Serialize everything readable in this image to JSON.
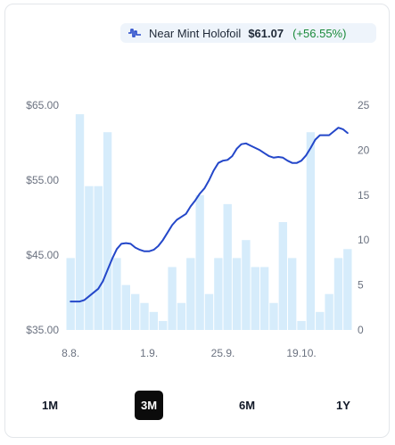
{
  "legend": {
    "series_name": "Near Mint Holofoil",
    "price": "$61.07",
    "change": "(+56.55%)",
    "icon": "pulse-line-icon"
  },
  "ranges": [
    "1M",
    "3M",
    "6M",
    "1Y"
  ],
  "active_range": "3M",
  "colors": {
    "line": "#2447c9",
    "bar": "#d6ecfb",
    "change": "#1a8a3a",
    "active_bg": "#0b0b0b"
  },
  "chart_data": {
    "type": "bar+line",
    "x_tick_labels": [
      "8.8.",
      "1.9.",
      "25.9.",
      "19.10."
    ],
    "left_axis": {
      "ticks": [
        "$35.00",
        "$45.00",
        "$55.00",
        "$65.00"
      ],
      "ylim": [
        35,
        65
      ]
    },
    "right_axis": {
      "ticks": [
        "0",
        "5",
        "10",
        "15",
        "20",
        "25"
      ],
      "ylim": [
        0,
        25
      ]
    },
    "bars": [
      8,
      24,
      16,
      16,
      22,
      8,
      5,
      4,
      3,
      2,
      1,
      7,
      3,
      8,
      15,
      4,
      8,
      14,
      8,
      10,
      7,
      7,
      3,
      12,
      8,
      1,
      22,
      2,
      4,
      8,
      9
    ],
    "line": [
      [
        0,
        38.8
      ],
      [
        1,
        38.8
      ],
      [
        1.5,
        39.0
      ],
      [
        2,
        39.5
      ],
      [
        3,
        40.5
      ],
      [
        3.5,
        41.5
      ],
      [
        4,
        43.0
      ],
      [
        4.5,
        44.5
      ],
      [
        5,
        45.8
      ],
      [
        5.5,
        46.5
      ],
      [
        6,
        46.6
      ],
      [
        6.5,
        46.5
      ],
      [
        7,
        46.0
      ],
      [
        7.5,
        45.7
      ],
      [
        8,
        45.5
      ],
      [
        8.5,
        45.5
      ],
      [
        9,
        45.7
      ],
      [
        9.5,
        46.2
      ],
      [
        10,
        47.0
      ],
      [
        10.5,
        48.0
      ],
      [
        11,
        49.0
      ],
      [
        11.5,
        49.7
      ],
      [
        12,
        50.1
      ],
      [
        12.5,
        50.5
      ],
      [
        13,
        51.5
      ],
      [
        13.5,
        52.3
      ],
      [
        14,
        53.2
      ],
      [
        14.5,
        53.9
      ],
      [
        15,
        55.0
      ],
      [
        15.5,
        56.3
      ],
      [
        16,
        57.3
      ],
      [
        16.5,
        57.6
      ],
      [
        17,
        57.7
      ],
      [
        17.5,
        58.2
      ],
      [
        18,
        59.2
      ],
      [
        18.5,
        59.8
      ],
      [
        19,
        59.9
      ],
      [
        19.5,
        59.6
      ],
      [
        20,
        59.3
      ],
      [
        20.5,
        59.0
      ],
      [
        21,
        58.6
      ],
      [
        21.5,
        58.2
      ],
      [
        22,
        58.0
      ],
      [
        22.5,
        58.1
      ],
      [
        23,
        58.0
      ],
      [
        23.5,
        57.6
      ],
      [
        24,
        57.3
      ],
      [
        24.5,
        57.3
      ],
      [
        25,
        57.6
      ],
      [
        25.5,
        58.3
      ],
      [
        26,
        59.3
      ],
      [
        26.5,
        60.4
      ],
      [
        27,
        61.0
      ],
      [
        27.5,
        61.0
      ],
      [
        28,
        61.0
      ],
      [
        28.5,
        61.5
      ],
      [
        29,
        62.0
      ],
      [
        29.5,
        61.8
      ],
      [
        30,
        61.3
      ]
    ]
  }
}
